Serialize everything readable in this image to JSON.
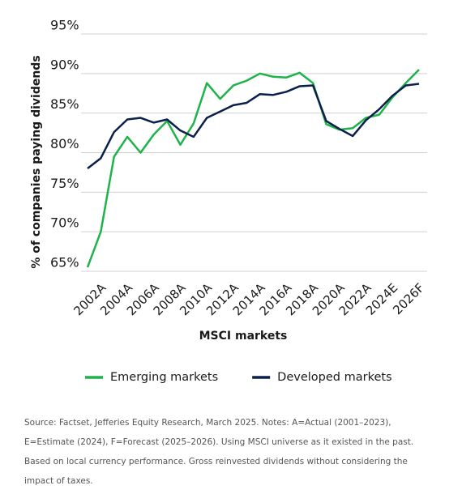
{
  "chart_data": {
    "type": "line",
    "y_label": "% of companies paying dividends",
    "x_label": "MSCI markets",
    "categories": [
      null,
      "2002A",
      null,
      "2004A",
      null,
      "2006A",
      null,
      "2008A",
      null,
      "2010A",
      null,
      "2012A",
      null,
      "2014A",
      null,
      "2016A",
      null,
      "2018A",
      null,
      "2020A",
      null,
      "2022A",
      null,
      "2024E",
      null,
      "2026F"
    ],
    "series": [
      {
        "name": "Emerging markets",
        "color": "#1db34a",
        "values": [
          65.5,
          70,
          79.5,
          82,
          80,
          82.3,
          84,
          81,
          83.7,
          88.8,
          86.8,
          88.5,
          89.1,
          90,
          89.6,
          89.5,
          90.1,
          88.8,
          83.6,
          82.9,
          83.1,
          84.4,
          84.8,
          87,
          88.8,
          90.5
        ]
      },
      {
        "name": "Developed markets",
        "color": "#0b1f4b",
        "values": [
          78,
          79.3,
          82.6,
          84.2,
          84.4,
          83.8,
          84.2,
          82.8,
          82,
          84.4,
          85.2,
          86,
          86.3,
          87.4,
          87.3,
          87.7,
          88.4,
          88.5,
          84,
          83,
          82.1,
          84.1,
          85.5,
          87.2,
          88.5,
          88.7
        ]
      }
    ],
    "ylim": [
      65,
      95
    ],
    "yticks": [
      {
        "value": 65,
        "label": "65%"
      },
      {
        "value": 70,
        "label": "70%"
      },
      {
        "value": 75,
        "label": "75%"
      },
      {
        "value": 80,
        "label": "80%"
      },
      {
        "value": 85,
        "label": "85%"
      },
      {
        "value": 90,
        "label": "90%"
      },
      {
        "value": 95,
        "label": "95%"
      }
    ],
    "grid": true,
    "source": "Source: Factset, Jefferies Equity Research, March 2025. Notes: A=Actual (2001–2023), E=Estimate (2024), F=Forecast (2025–2026). Using MSCI universe as it existed in the past. Based on local currency performance. Gross reinvested dividends without considering the impact of taxes."
  }
}
